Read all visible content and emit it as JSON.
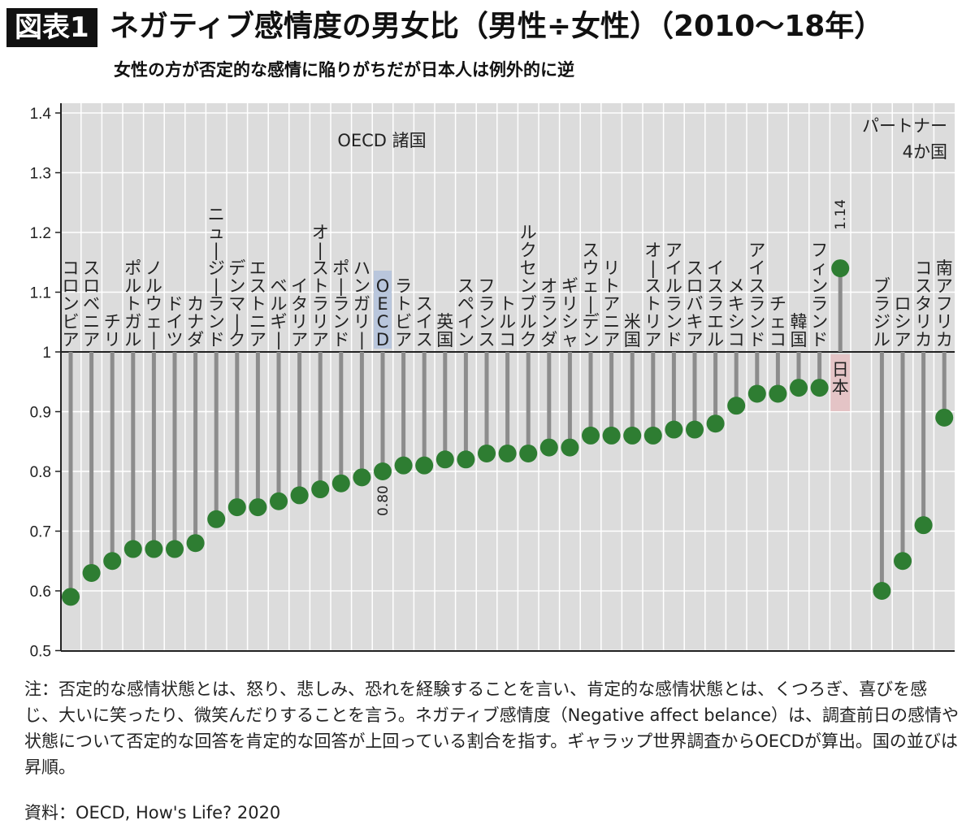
{
  "header": {
    "badge": "図表1",
    "title": "ネガティブ感情度の男女比（男性÷女性）（2010〜18年）",
    "subtitle": "女性の方が否定的な感情に陥りがちだが日本人は例外的に逆"
  },
  "chart_data": {
    "type": "lollipop",
    "baseline": 1,
    "ylim": [
      0.5,
      1.4
    ],
    "yticks": [
      0.5,
      0.6,
      0.7,
      0.8,
      0.9,
      1,
      1.1,
      1.2,
      1.3,
      1.4
    ],
    "ytick_labels": [
      "0.5",
      "0.6",
      "0.7",
      "0.8",
      "0.9",
      "1",
      "1.1",
      "1.2",
      "1.3",
      "1.4"
    ],
    "group_labels": {
      "oecd": "OECD 諸国",
      "partner_line1": "パートナー",
      "partner_line2": "4か国"
    },
    "annotations": {
      "oecd": "0.80",
      "japan": "1.14"
    },
    "categories": [
      "コロンビア",
      "スロベニア",
      "チリ",
      "ポルトガル",
      "ノルウェー",
      "ドイツ",
      "カナダ",
      "ニュージーランド",
      "デンマーク",
      "エストニア",
      "ベルギー",
      "イタリア",
      "オーストラリア",
      "ポーランド",
      "ハンガリー",
      "OECD",
      "ラトビア",
      "スイス",
      "英国",
      "スペイン",
      "フランス",
      "トルコ",
      "ルクセンブルク",
      "オランダ",
      "ギリシャ",
      "スウェーデン",
      "リトアニア",
      "米国",
      "オーストリア",
      "アイルランド",
      "スロバキア",
      "イスラエル",
      "メキシコ",
      "アイスランド",
      "チェコ",
      "韓国",
      "フィンランド",
      "日本",
      "ブラジル",
      "ロシア",
      "コスタリカ",
      "南アフリカ"
    ],
    "values": [
      0.59,
      0.63,
      0.65,
      0.67,
      0.67,
      0.67,
      0.68,
      0.72,
      0.74,
      0.74,
      0.75,
      0.76,
      0.77,
      0.78,
      0.79,
      0.8,
      0.81,
      0.81,
      0.82,
      0.82,
      0.83,
      0.83,
      0.83,
      0.84,
      0.84,
      0.86,
      0.86,
      0.86,
      0.86,
      0.87,
      0.87,
      0.88,
      0.91,
      0.93,
      0.93,
      0.94,
      0.94,
      1.14,
      0.6,
      0.65,
      0.71,
      0.89
    ],
    "groups": [
      "oecd",
      "oecd",
      "oecd",
      "oecd",
      "oecd",
      "oecd",
      "oecd",
      "oecd",
      "oecd",
      "oecd",
      "oecd",
      "oecd",
      "oecd",
      "oecd",
      "oecd",
      "oecd",
      "oecd",
      "oecd",
      "oecd",
      "oecd",
      "oecd",
      "oecd",
      "oecd",
      "oecd",
      "oecd",
      "oecd",
      "oecd",
      "oecd",
      "oecd",
      "oecd",
      "oecd",
      "oecd",
      "oecd",
      "oecd",
      "oecd",
      "oecd",
      "oecd",
      "oecd",
      "partner",
      "partner",
      "partner",
      "partner"
    ],
    "colors": {
      "dot": "#2e7d32",
      "stem": "#8c8c8c",
      "bg": "#dcdcdc",
      "oecd_highlight": "#b9c6dc",
      "japan_highlight": "#e4c4c6"
    }
  },
  "notes": {
    "note": "注：否定的な感情状態とは、怒り、悲しみ、恐れを経験することを言い、肯定的な感情状態とは、くつろぎ、喜びを感じ、大いに笑ったり、微笑んだりすることを言う。ネガティブ感情度（Negative affect belance）は、調査前日の感情や状態について否定的な回答を肯定的な回答が上回っている割合を指す。ギャラップ世界調査からOECDが算出。国の並びは昇順。",
    "source": "資料：OECD, How's Life? 2020"
  }
}
